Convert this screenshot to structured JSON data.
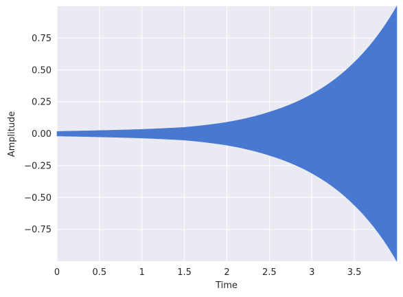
{
  "chart_data": {
    "type": "area",
    "title": "",
    "xlabel": "Time",
    "ylabel": "Amplitude",
    "xlim": [
      0,
      4
    ],
    "ylim": [
      -1,
      1
    ],
    "x_ticks": [
      0,
      0.5,
      1,
      1.5,
      2,
      2.5,
      3,
      3.5
    ],
    "x_tick_labels": [
      "0",
      "0.5",
      "1",
      "1.5",
      "2",
      "2.5",
      "3",
      "3.5"
    ],
    "y_ticks": [
      -0.75,
      -0.5,
      -0.25,
      0.0,
      0.25,
      0.5,
      0.75
    ],
    "y_tick_labels": [
      "−0.75",
      "−0.50",
      "−0.25",
      "0.00",
      "0.25",
      "0.50",
      "0.75"
    ],
    "grid": true,
    "style": "darkgrid",
    "series": [
      {
        "envelope_x": [
          0,
          0.5,
          1,
          1.5,
          2,
          2.5,
          3,
          3.5,
          4
        ],
        "envelope_upper": [
          0.018,
          0.025,
          0.034,
          0.05,
          0.09,
          0.17,
          0.31,
          0.56,
          1.0
        ],
        "envelope_lower": [
          -0.018,
          -0.025,
          -0.034,
          -0.05,
          -0.09,
          -0.17,
          -0.31,
          -0.56,
          -1.0
        ],
        "color": "#4878d0"
      }
    ],
    "colors": {
      "plot_background": "#eaeaf2",
      "grid": "#ffffff",
      "series": "#4878d0"
    }
  }
}
